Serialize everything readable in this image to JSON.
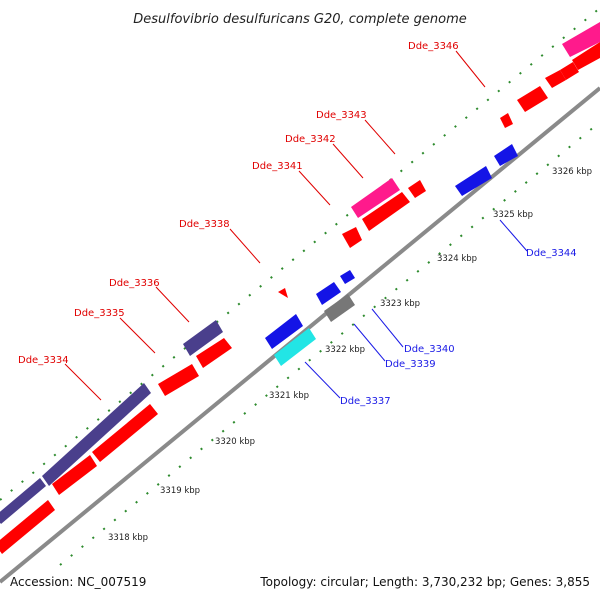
{
  "title": "Desulfovibrio desulfuricans G20, complete genome",
  "footer": {
    "accession": "Accession: NC_007519",
    "topology": "Topology: circular; Length: 3,730,232 bp; Genes: 3,855"
  },
  "colors": {
    "background": "#ffffff",
    "backbone": "#8a8a8a",
    "tick_marks": "#2e8b2e",
    "cds_forward": "#ff0000",
    "cds_reverse": "#1414e6",
    "rna_gene": "#ff1a8c",
    "highlight_gene": "#4a3f8c",
    "cyan_gene": "#22e5e5",
    "pseudo_gene": "#777777",
    "label_top": "#e00000",
    "label_bottom": "#1a1ae6"
  },
  "kbp_labels": [
    "3318 kbp",
    "3319 kbp",
    "3320 kbp",
    "3321 kbp",
    "3322 kbp",
    "3323 kbp",
    "3324 kbp",
    "3325 kbp",
    "3326 kbp"
  ],
  "gene_labels_top": [
    "Dde_3334",
    "Dde_3335",
    "Dde_3336",
    "Dde_3338",
    "Dde_3341",
    "Dde_3342",
    "Dde_3343",
    "Dde_3346"
  ],
  "gene_labels_bottom": [
    "Dde_3337",
    "Dde_3339",
    "Dde_3340",
    "Dde_3344"
  ]
}
